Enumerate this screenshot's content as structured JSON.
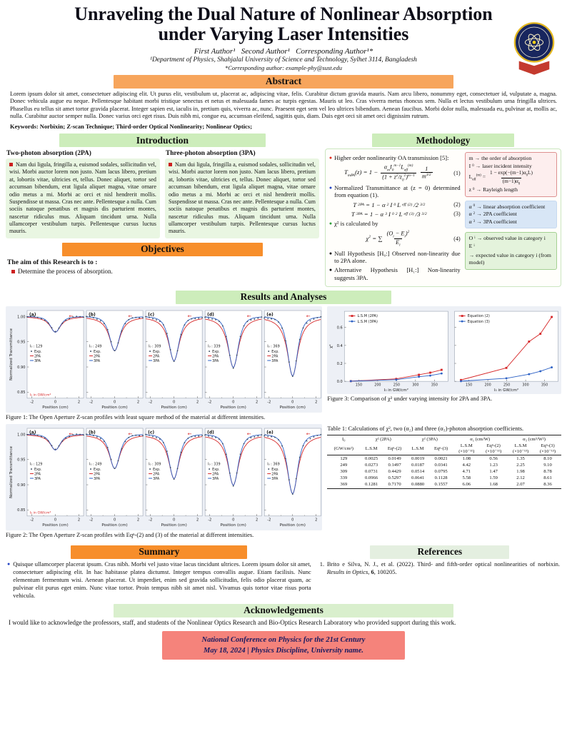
{
  "header": {
    "title": "Unraveling the Dual Nature of Nonlinear Absorption under Varying Laser Intensities",
    "authors": "First Author¹   Second Author¹   Corresponding Author¹*",
    "affiliation": "¹Department of Physics, Shahjalal University of Science and Technology, Sylhet 3114, Bangladesh",
    "corresponding": "*Corresponding author: example-phy@sust.edu"
  },
  "abstract": {
    "heading": "Abstract",
    "body": "Lorem ipsum dolor sit amet, consectetuer adipiscing elit. Ut purus elit, vestibulum ut, placerat ac, adipiscing vitae, felis. Curabitur dictum gravida mauris. Nam arcu libero, nonummy eget, consectetuer id, vulputate a, magna. Donec vehicula augue eu neque. Pellentesque habitant morbi tristique senectus et netus et malesuada fames ac turpis egestas. Mauris ut leo. Cras viverra metus rhoncus sem. Nulla et lectus vestibulum urna fringilla ultrices. Phasellus eu tellus sit amet tortor gravida placerat. Integer sapien est, iaculis in, pretium quis, viverra ac, nunc. Praesent eget sem vel leo ultrices bibendum. Aenean faucibus. Morbi dolor nulla, malesuada eu, pulvinar at, mollis ac, nulla. Curabitur auctor semper nulla. Donec varius orci eget risus. Duis nibh mi, congue eu, accumsan eleifend, sagittis quis, diam. Duis eget orci sit amet orci dignissim rutrum.",
    "keywords": "Keywords: Norbixin; Z-scan Technique; Third-order Optical Nonlinearity; Nonlinear Optics;"
  },
  "introduction": {
    "heading": "Introduction",
    "columns": [
      {
        "title": "Two-photon absorption (2PA)",
        "body": "Nam dui ligula, fringilla a, euismod sodales, sollicitudin vel, wisi. Morbi auctor lorem non justo. Nam lacus libero, pretium at, lobortis vitae, ultricies et, tellus. Donec aliquet, tortor sed accumsan bibendum, erat ligula aliquet magna, vitae ornare odio metus a mi. Morbi ac orci et nisl hendrerit mollis. Suspendisse ut massa. Cras nec ante. Pellentesque a nulla. Cum sociis natoque penatibus et magnis dis parturient montes, nascetur ridiculus mus. Aliquam tincidunt urna. Nulla ullamcorper vestibulum turpis. Pellentesque cursus luctus mauris."
      },
      {
        "title": "Three-photon absorption (3PA)",
        "body": "Nam dui ligula, fringilla a, euismod sodales, sollicitudin vel, wisi. Morbi auctor lorem non justo. Nam lacus libero, pretium at, lobortis vitae, ultricies et, tellus. Donec aliquet, tortor sed accumsan bibendum, erat ligula aliquet magna, vitae ornare odio metus a mi. Morbi ac orci et nisl hendrerit mollis. Suspendisse ut massa. Cras nec ante. Pellentesque a nulla. Cum sociis natoque penatibus et magnis dis parturient montes, nascetur ridiculus mus. Aliquam tincidunt urna. Nulla ullamcorper vestibulum turpis. Pellentesque cursus luctus mauris."
      }
    ]
  },
  "objectives": {
    "heading": "Objectives",
    "lead": "The aim of this Research is to :",
    "item": "Determine the process of absorption."
  },
  "methodology": {
    "heading": "Methodology",
    "bullet1": "Higher order nonlinearity OA transmission [5]:",
    "bullet2": "Normalized Transmittance at (z = 0) determined from equation (1).",
    "bullet3": "χ² is calculated by",
    "bullet4": "Null Hypothesis [H₀:] Observed non-linearity due to 2PA alone.",
    "bullet5": "Alternative Hypothesis [H₁:] Non-linearity suggests 3PA.",
    "eq1": {
      "lhs": "T<sub>mPA</sub>(z) = 1 −",
      "num1": "α<sub>m</sub>I<sub>0</sub><sup>m−1</sup>L<sub>eff</sub><sup>(m)</sup>",
      "den1": "(1 + z<sup>2</sup>/z<sub>0</sub><sup>2</sup>)<sup>m−1</sup>",
      "num2": "1",
      "den2": "m<sup>3/2</sup>",
      "tag": "(1)"
    },
    "eq2": {
      "body": "T<sub>2PA</sub> = 1 − α<sub>2</sub>I<sub>0</sub>L<sub>eff</sub><sup>(2)</sup>/2<sup>3/2</sup>",
      "tag": "(2)"
    },
    "eq3": {
      "body": "T<sub>3PA</sub> = 1 − α<sub>3</sub>I<sub>0</sub><sup>2</sup>L<sub>eff</sub><sup>(3)</sup>/3<sup>3/2</sup>",
      "tag": "(3)"
    },
    "eq4": {
      "lhs": "χ<sup>2</sup> = ∑",
      "num": "(O<sub>i</sub> − E<sub>i</sub>)<sup>2</sup>",
      "den": "E<sub>i</sub>",
      "tag": "(4)"
    },
    "box1": {
      "line1": "m → the order of absorption",
      "line2": "I<sub>0</sub> → laser incident intensity",
      "line3_lhs": "L<sub>eff</sub><sup>(m)</sup> =",
      "line3_num": "1 − exp(−(m−1)α<sub>0</sub>L)",
      "line3_den": "(m−1)α<sub>0</sub>",
      "line4": "z<sub>0</sub> → Rayleigh length"
    },
    "box2": {
      "line1": "α<sub>0</sub> → linear absorption coefficient",
      "line2": "α<sub>2</sub> → 2PA coefficient",
      "line3": "α<sub>3</sub> → 3PA coefficient"
    },
    "box3": {
      "line1": "O<sub>i</sub> → observed value in category i",
      "line2": "E<sub>i</sub> → expected value in category i (from model)"
    }
  },
  "results": {
    "heading": "Results and Analyses",
    "fig1_caption": "Figure 1: The Open Aperture Z-scan profiles with least square method of the material at different intensities.",
    "fig2_caption": "Figure 2: The Open Aperture Z-scan profiles with Eqⁿ-(2) and (3) of the material at different intensities.",
    "fig3_caption": "Figure 3: Comparison of χ² under varying intensity for 2PA and 3PA.",
    "table1": {
      "caption": "Table 1: Calculations of χ², two (α₂) and three (α₃)-photon absorption coefficients.",
      "group_headers": [
        {
          "label": "I₀",
          "span": 1
        },
        {
          "label": "χ² (2PA)",
          "span": 2
        },
        {
          "label": "χ² (3PA)",
          "span": 2
        },
        {
          "label": "α₂ (cm/W)",
          "span": 2
        },
        {
          "label": "α₃ (cm³/W²)",
          "span": 2
        }
      ],
      "sub_headers": [
        "(GW/cm²)",
        "L.S.M",
        "Eqⁿ-(2)",
        "L.S.M",
        "Eqⁿ-(3)",
        "L.S.M\n(×10⁻¹¹)",
        "Eqⁿ-(2)\n(×10⁻¹¹)",
        "L.S.M\n(×10⁻¹³)",
        "Eqⁿ-(3)\n(×10⁻¹³)"
      ],
      "rows": [
        [
          "129",
          "0.0025",
          "0.0149",
          "0.0019",
          "0.0021",
          "1.08",
          "0.56",
          "1.35",
          "8.10"
        ],
        [
          "249",
          "0.0273",
          "0.1497",
          "0.0187",
          "0.0341",
          "4.42",
          "1.23",
          "2.25",
          "9.10"
        ],
        [
          "309",
          "0.0731",
          "0.4429",
          "0.0514",
          "0.0795",
          "4.71",
          "1.47",
          "1.98",
          "8.78"
        ],
        [
          "339",
          "0.0966",
          "0.5297",
          "0.0641",
          "0.1128",
          "5.58",
          "1.59",
          "2.12",
          "8.61"
        ],
        [
          "369",
          "0.1281",
          "0.7170",
          "0.0880",
          "0.1557",
          "6.06",
          "1.68",
          "2.07",
          "8.36"
        ]
      ]
    }
  },
  "summary": {
    "heading": "Summary",
    "body": "Quisque ullamcorper placerat ipsum. Cras nibh. Morbi vel justo vitae lacus tincidunt ultrices. Lorem ipsum dolor sit amet, consectetuer adipiscing elit. In hac habitasse platea dictumst. Integer tempus convallis augue. Etiam facilisis. Nunc elementum fermentum wisi. Aenean placerat. Ut imperdiet, enim sed gravida sollicitudin, felis odio placerat quam, ac pulvinar elit purus eget enim. Nunc vitae tortor. Proin tempus nibh sit amet nisl. Vivamus quis tortor vitae risus porta vehicula."
  },
  "references": {
    "heading": "References",
    "item1_prefix": "1.",
    "item1_html": "Brito e Silva, N. J., et al. (2022). Third- and fifth-order optical nonlinearities of norbixin. <i>Results in Optics</i>, <b>6</b>, 100205."
  },
  "acknowledgements": {
    "heading": "Acknowledgements",
    "body": "I would like to acknowledge the professors, staff, and students of the Nonlinear Optics Research and Bio-Optics Research Laboratory who provided support during this work."
  },
  "footer": {
    "line1": "National Conference on Physics for the 21st Century",
    "line2": "May 18, 2024  |  Physics Discipline, University name."
  },
  "chart_data": [
    {
      "id": "figure1",
      "type": "line",
      "title": "Open Aperture Z-scan profiles (least square method)",
      "xlabel": "Position (cm)",
      "ylabel": "Normalized Transmittance",
      "xlim": [
        -2.4,
        2.4
      ],
      "ylim": [
        0.838,
        1.012
      ],
      "xticks": [
        -2,
        0,
        2
      ],
      "xminor": [
        -1,
        1
      ],
      "yticks": [
        1.0,
        0.95,
        0.9,
        0.85
      ],
      "legend": [
        "Exp.",
        "2PA",
        "3PA"
      ],
      "note": "I₀ in GW/cm²",
      "colors": {
        "exp": "#3a4a5e",
        "pa2": "#d62728",
        "pa3": "#2a5fc4"
      },
      "panels": [
        {
          "tag": "(a)",
          "intensity_label": "I₀ : 129",
          "dip": 0.031
        },
        {
          "tag": "(b)",
          "intensity_label": "I₀ : 249",
          "dip": 0.068
        },
        {
          "tag": "(c)",
          "intensity_label": "I₀ : 309",
          "dip": 0.088
        },
        {
          "tag": "(d)",
          "intensity_label": "I₀ : 339",
          "dip": 0.101
        },
        {
          "tag": "(e)",
          "intensity_label": "I₀ : 369",
          "dip": 0.118
        }
      ]
    },
    {
      "id": "figure2",
      "type": "line",
      "title": "Open Aperture Z-scan profiles (Eqn-(2) and (3))",
      "xlabel": "Position (cm)",
      "ylabel": "Normalized Transmittance",
      "xlim": [
        -2.4,
        2.4
      ],
      "ylim": [
        0.838,
        1.012
      ],
      "xticks": [
        -2,
        0,
        2
      ],
      "xminor": [
        -1,
        1
      ],
      "yticks": [
        1.0,
        0.95,
        0.9,
        0.85
      ],
      "legend": [
        "Exp.",
        "2PA",
        "3PA"
      ],
      "note": "I₀ in GW/cm²",
      "colors": {
        "exp": "#3a4a5e",
        "pa2": "#d62728",
        "pa3": "#2a5fc4"
      },
      "panels": [
        {
          "tag": "(a)",
          "intensity_label": "I₀ : 129",
          "dip": 0.031
        },
        {
          "tag": "(b)",
          "intensity_label": "I₀ : 249",
          "dip": 0.068
        },
        {
          "tag": "(c)",
          "intensity_label": "I₀ : 309",
          "dip": 0.088
        },
        {
          "tag": "(d)",
          "intensity_label": "I₀ : 339",
          "dip": 0.101
        },
        {
          "tag": "(e)",
          "intensity_label": "I₀ : 369",
          "dip": 0.118
        }
      ]
    },
    {
      "id": "figure3",
      "type": "line",
      "title": "Comparison of chi-squared under varying intensity for 2PA and 3PA",
      "x": [
        129,
        249,
        309,
        339,
        369
      ],
      "xlim": [
        112,
        386
      ],
      "ylim": [
        0,
        0.78
      ],
      "xticks": [
        150,
        200,
        250,
        300,
        350
      ],
      "yticks": [
        0.0,
        0.2,
        0.4,
        0.6
      ],
      "xlabel": "I₀ in GW/cm²",
      "ylabel": "χ²",
      "panels": [
        {
          "series": [
            {
              "name": "L.S.M (2PA)",
              "color": "#d62728",
              "marker": "square",
              "values": [
                0.0025,
                0.0273,
                0.0731,
                0.0966,
                0.1281
              ]
            },
            {
              "name": "L.S.M (3PA)",
              "color": "#2a5fc4",
              "marker": "circle",
              "values": [
                0.0019,
                0.0187,
                0.0514,
                0.0641,
                0.088
              ]
            }
          ]
        },
        {
          "series": [
            {
              "name": "Equation (2)",
              "color": "#d62728",
              "marker": "square",
              "values": [
                0.0149,
                0.1497,
                0.4429,
                0.5297,
                0.717
              ]
            },
            {
              "name": "Equation (3)",
              "color": "#2a5fc4",
              "marker": "circle",
              "values": [
                0.0021,
                0.0341,
                0.0795,
                0.1128,
                0.1557
              ]
            }
          ]
        }
      ]
    }
  ]
}
